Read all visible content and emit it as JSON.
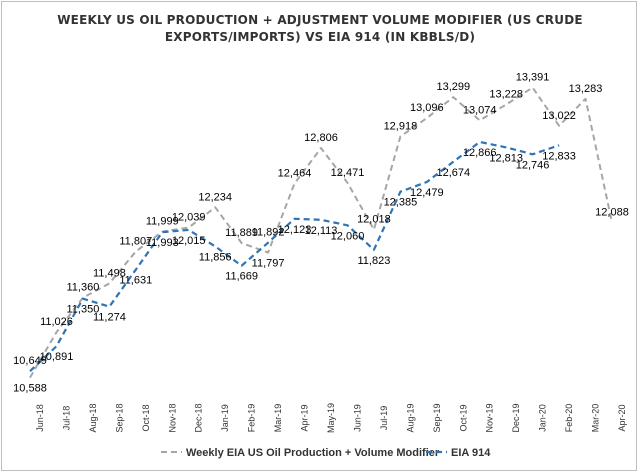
{
  "chart_data": {
    "type": "line",
    "title_line1": "WEEKLY US OIL PRODUCTION + ADJUSTMENT VOLUME MODIFIER (US CRUDE",
    "title_line2": "EXPORTS/IMPORTS) VS EIA 914 (IN KBBLS/D)",
    "categories": [
      "Jun-18",
      "Jul-18",
      "Aug-18",
      "Sep-18",
      "Oct-18",
      "Nov-18",
      "Dec-18",
      "Jan-19",
      "Feb-19",
      "Mar-19",
      "Apr-19",
      "May-19",
      "Jun-19",
      "Jul-19",
      "Aug-19",
      "Sep-19",
      "Oct-19",
      "Nov-19",
      "Dec-19",
      "Jan-20",
      "Feb-20",
      "Mar-20",
      "Apr-20"
    ],
    "ylim": [
      10400,
      13600
    ],
    "series": [
      {
        "name": "Weekly EIA US Oil Production + Volume Modifier",
        "color": "#a6a6a6",
        "values": [
          10588,
          11026,
          11360,
          11498,
          11807,
          11999,
          12039,
          12234,
          11889,
          11797,
          12464,
          12806,
          12471,
          12018,
          12918,
          13096,
          13299,
          13074,
          13228,
          13391,
          13022,
          13283,
          12088
        ]
      },
      {
        "name": "EIA 914",
        "color": "#2e75b6",
        "values": [
          10649,
          10891,
          11350,
          11274,
          11631,
          11993,
          12015,
          11856,
          11669,
          11892,
          12123,
          12113,
          12060,
          11823,
          12385,
          12479,
          12674,
          12866,
          12813,
          12746,
          12833,
          null,
          null
        ]
      }
    ],
    "data_labels": {
      "gray": [
        "10,588",
        "11,026",
        "11,360",
        "11,498",
        "11,807",
        "11,999",
        "12,039",
        "12,234",
        "11,889",
        "11,797",
        "12,464",
        "12,806",
        "12,471",
        "12,018",
        "12,918",
        "13,096",
        "13,299",
        "13,074",
        "13,228",
        "13,391",
        "13,022",
        "13,283",
        "12,088"
      ],
      "blue": [
        "10,649",
        "10,891",
        "11,350",
        "11,274",
        "11,631",
        "11,993",
        "12,015",
        "11,856",
        "11,669",
        "11,892",
        "12,123",
        "12,113",
        "12,060",
        "11,823",
        "12,385",
        "12,479",
        "12,674",
        "12,866",
        "12,813",
        "12,746",
        "12,833"
      ]
    },
    "legend": {
      "position": "bottom",
      "items": [
        "Weekly EIA US Oil Production + Volume Modifier",
        "EIA 914"
      ]
    },
    "grid": false
  }
}
